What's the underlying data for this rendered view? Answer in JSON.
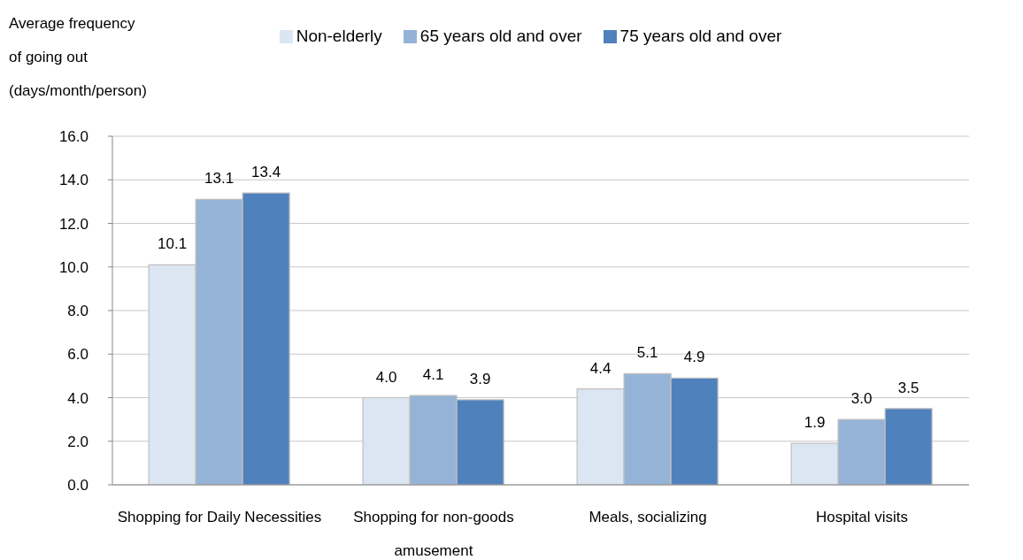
{
  "chart_data": {
    "type": "bar",
    "ylabel": "Average frequency of going out (days/month/person)",
    "categories": [
      "Shopping for Daily Necessities",
      "Shopping for non-goods amusement",
      "Meals, socializing",
      "Hospital visits"
    ],
    "series": [
      {
        "name": "Non-elderly",
        "color": "#dce6f2",
        "values": [
          10.1,
          4.0,
          4.4,
          1.9
        ],
        "value_labels": [
          "10.1",
          "4.0",
          "4.4",
          "1.9"
        ]
      },
      {
        "name": "65 years old and over",
        "color": "#95b3d7",
        "values": [
          13.1,
          4.1,
          5.1,
          3.0
        ],
        "value_labels": [
          "13.1",
          "4.1",
          "5.1",
          "3.0"
        ]
      },
      {
        "name": "75 years old and over",
        "color": "#4f81bd",
        "values": [
          13.4,
          3.9,
          4.9,
          3.5
        ],
        "value_labels": [
          "13.4",
          "3.9",
          "4.9",
          "3.5"
        ]
      }
    ],
    "ylim": [
      0,
      16
    ],
    "yticks": [
      {
        "value": 0,
        "label": "0.0"
      },
      {
        "value": 2,
        "label": "2.0"
      },
      {
        "value": 4,
        "label": "4.0"
      },
      {
        "value": 6,
        "label": "6.0"
      },
      {
        "value": 8,
        "label": "8.0"
      },
      {
        "value": 10,
        "label": "10.0"
      },
      {
        "value": 12,
        "label": "12.0"
      },
      {
        "value": 14,
        "label": "14.0"
      },
      {
        "value": 16,
        "label": "16.0"
      }
    ],
    "grid": "y",
    "legend": "top"
  }
}
